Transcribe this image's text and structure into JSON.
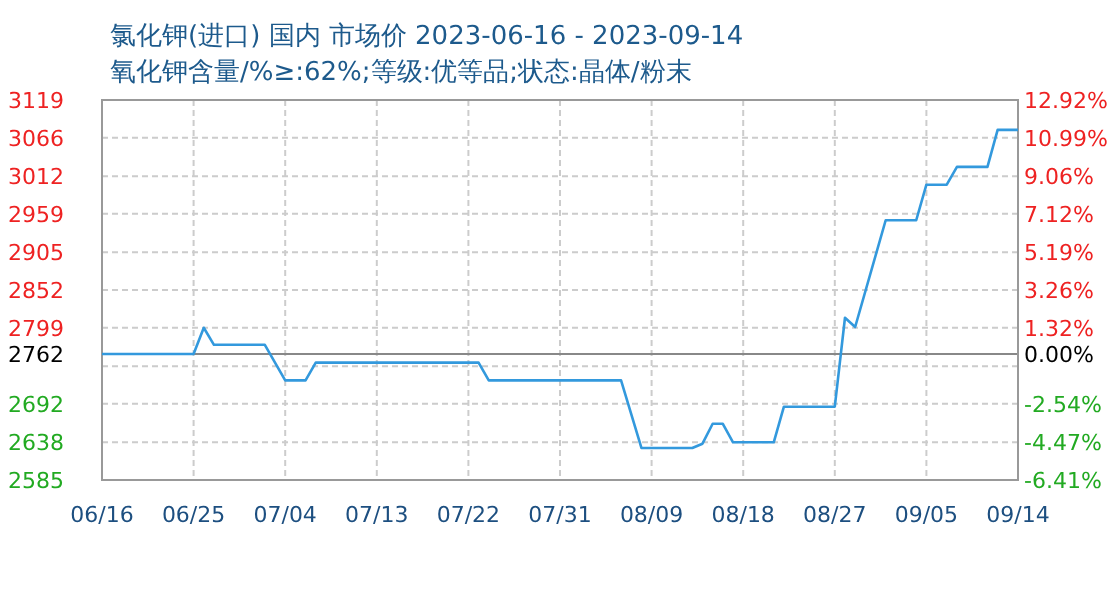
{
  "chart_data": {
    "type": "line",
    "title": "氯化钾(进口) 国内 市场价 2023-06-16 - 2023-09-14",
    "subtitle": "氧化钾含量/%≥:62%;等级:优等品;状态:晶体/粉末",
    "x": [
      "--06-16",
      "--06-25",
      "--06-26",
      "--06-27",
      "--07-02",
      "--07-04",
      "--07-06",
      "--07-07",
      "--07-23",
      "--07-24",
      "--08-06",
      "--08-08",
      "--08-13",
      "--08-14",
      "--08-15",
      "--08-16",
      "--08-17",
      "--08-21",
      "--08-22",
      "--08-27",
      "--08-28",
      "--08-29",
      "--09-01",
      "--09-04",
      "--09-05",
      "--09-07",
      "--09-08",
      "--09-11",
      "--09-12",
      "--09-14"
    ],
    "series": [
      {
        "color": "#3399dd",
        "values": [
          2762,
          2762,
          2799,
          2775,
          2775,
          2725,
          2725,
          2750,
          2750,
          2725,
          2725,
          2630,
          2630,
          2636,
          2664,
          2664,
          2638,
          2638,
          2688,
          2688,
          2813,
          2800,
          2950,
          2950,
          3000,
          3000,
          3025,
          3025,
          3077,
          3077
        ]
      }
    ],
    "xlim": [
      "--06-16",
      "--09-14"
    ],
    "xticks": [
      {
        "value": "--06-16",
        "label": "06/16"
      },
      {
        "value": "--06-25",
        "label": "06/25"
      },
      {
        "value": "--07-04",
        "label": "07/04"
      },
      {
        "value": "--07-13",
        "label": "07/13"
      },
      {
        "value": "--07-22",
        "label": "07/22"
      },
      {
        "value": "--07-31",
        "label": "07/31"
      },
      {
        "value": "--08-09",
        "label": "08/09"
      },
      {
        "value": "--08-18",
        "label": "08/18"
      },
      {
        "value": "--08-27",
        "label": "08/27"
      },
      {
        "value": "--09-05",
        "label": "09/05"
      },
      {
        "value": "--09-14",
        "label": "09/14"
      }
    ],
    "ylim": [
      2585,
      3119
    ],
    "yticks": [
      2585,
      2638,
      2692,
      {
        "value": 2745,
        "label": null
      },
      2762,
      2799,
      2852,
      2905,
      2959,
      3012,
      3066,
      3119
    ],
    "y2lim": [
      -6.41,
      12.92
    ],
    "y2ticks": [
      {
        "value": -6.41,
        "label": "-6.41%"
      },
      {
        "value": -4.47,
        "label": "-4.47%"
      },
      {
        "value": -2.54,
        "label": "-2.54%"
      },
      {
        "value": 0,
        "label": "0.00%"
      },
      {
        "value": 1.32,
        "label": "1.32%"
      },
      {
        "value": 3.26,
        "label": "3.26%"
      },
      {
        "value": 5.19,
        "label": "5.19%"
      },
      {
        "value": 7.12,
        "label": "7.12%"
      },
      {
        "value": 9.06,
        "label": "9.06%"
      },
      {
        "value": 10.99,
        "label": "10.99%"
      },
      {
        "value": 12.92,
        "label": "12.92%"
      }
    ],
    "ref_lines": [
      {
        "axis": "y",
        "value": 2762,
        "color": "#888888"
      }
    ],
    "grid": true,
    "marker": "none",
    "line_style": "solid"
  }
}
